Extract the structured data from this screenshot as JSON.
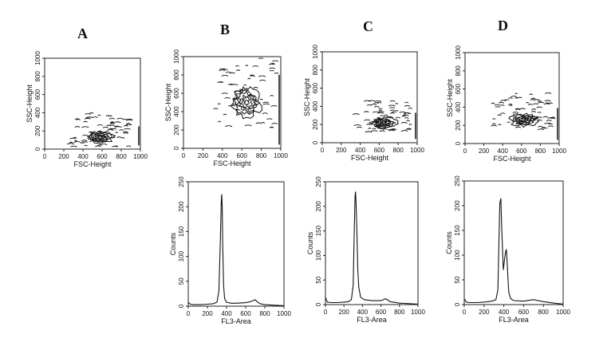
{
  "panel_letters": [
    "A",
    "B",
    "C",
    "D"
  ],
  "chart_data": [
    {
      "panel": "A",
      "type": "contour",
      "xlabel": "FSC-Height",
      "ylabel": "SSC-Height",
      "xlim": [
        0,
        1000
      ],
      "ylim": [
        0,
        1000
      ],
      "xticks": [
        0,
        200,
        400,
        600,
        800,
        1000
      ],
      "yticks": [
        0,
        200,
        400,
        600,
        800,
        1000
      ],
      "population": {
        "center": [
          580,
          130
        ],
        "spread": [
          260,
          120
        ]
      }
    },
    {
      "panel": "B",
      "type": "contour",
      "xlabel": "FSC-Height",
      "ylabel": "SSC-Height",
      "xlim": [
        0,
        1000
      ],
      "ylim": [
        0,
        1000
      ],
      "xticks": [
        0,
        200,
        400,
        600,
        800,
        1000
      ],
      "yticks": [
        0,
        200,
        400,
        600,
        800,
        1000
      ],
      "population": {
        "center": [
          650,
          500
        ],
        "spread": [
          280,
          300
        ]
      }
    },
    {
      "panel": "C",
      "type": "contour",
      "xlabel": "FSC-Height",
      "ylabel": "SSC-Height",
      "xlim": [
        0,
        1000
      ],
      "ylim": [
        0,
        1000
      ],
      "xticks": [
        0,
        200,
        400,
        600,
        800,
        1000
      ],
      "yticks": [
        0,
        200,
        400,
        600,
        800,
        1000
      ],
      "population": {
        "center": [
          650,
          220
        ],
        "spread": [
          250,
          110
        ]
      }
    },
    {
      "panel": "D",
      "type": "contour",
      "xlabel": "FSC-Height",
      "ylabel": "SSC-Height",
      "xlim": [
        0,
        1000
      ],
      "ylim": [
        0,
        1000
      ],
      "xticks": [
        0,
        200,
        400,
        600,
        800,
        1000
      ],
      "yticks": [
        0,
        200,
        400,
        600,
        800,
        1000
      ],
      "population": {
        "center": [
          620,
          260
        ],
        "spread": [
          270,
          130
        ]
      }
    },
    {
      "panel": "B",
      "type": "line",
      "xlabel": "FL3-Area",
      "ylabel": "Counts",
      "xlim": [
        0,
        1000
      ],
      "ylim": [
        0,
        250
      ],
      "xticks": [
        0,
        200,
        400,
        600,
        800,
        1000
      ],
      "yticks": [
        0,
        50,
        100,
        150,
        200,
        250
      ],
      "x": [
        0,
        20,
        60,
        120,
        200,
        260,
        300,
        320,
        335,
        345,
        350,
        355,
        360,
        370,
        380,
        400,
        450,
        500,
        600,
        650,
        700,
        720,
        750,
        800,
        900,
        1000
      ],
      "y": [
        8,
        4,
        3,
        3,
        4,
        5,
        8,
        30,
        130,
        210,
        225,
        200,
        120,
        40,
        15,
        8,
        6,
        6,
        7,
        9,
        13,
        9,
        5,
        3,
        2,
        1
      ]
    },
    {
      "panel": "C",
      "type": "line",
      "xlabel": "FL3-Area",
      "ylabel": "Counts",
      "xlim": [
        0,
        1000
      ],
      "ylim": [
        0,
        250
      ],
      "xticks": [
        0,
        200,
        400,
        600,
        800,
        1000
      ],
      "yticks": [
        0,
        50,
        100,
        150,
        200,
        250
      ],
      "x": [
        0,
        20,
        60,
        120,
        200,
        250,
        280,
        300,
        310,
        320,
        325,
        330,
        340,
        350,
        360,
        380,
        420,
        500,
        600,
        650,
        700,
        800,
        900,
        1000
      ],
      "y": [
        15,
        5,
        4,
        4,
        5,
        6,
        10,
        40,
        140,
        220,
        230,
        210,
        150,
        70,
        35,
        15,
        10,
        8,
        8,
        12,
        6,
        3,
        2,
        1
      ]
    },
    {
      "panel": "D",
      "type": "line",
      "xlabel": "FL3-Area",
      "ylabel": "Counts",
      "xlim": [
        0,
        1000
      ],
      "ylim": [
        0,
        250
      ],
      "xticks": [
        0,
        200,
        400,
        600,
        800,
        1000
      ],
      "yticks": [
        0,
        50,
        100,
        150,
        200,
        250
      ],
      "x": [
        0,
        20,
        60,
        120,
        200,
        280,
        320,
        340,
        350,
        360,
        370,
        380,
        395,
        410,
        420,
        425,
        430,
        440,
        450,
        470,
        500,
        600,
        700,
        800,
        900,
        1000
      ],
      "y": [
        12,
        5,
        4,
        4,
        5,
        7,
        10,
        30,
        120,
        205,
        215,
        150,
        70,
        95,
        108,
        112,
        100,
        60,
        25,
        12,
        8,
        7,
        10,
        6,
        3,
        1
      ]
    }
  ]
}
